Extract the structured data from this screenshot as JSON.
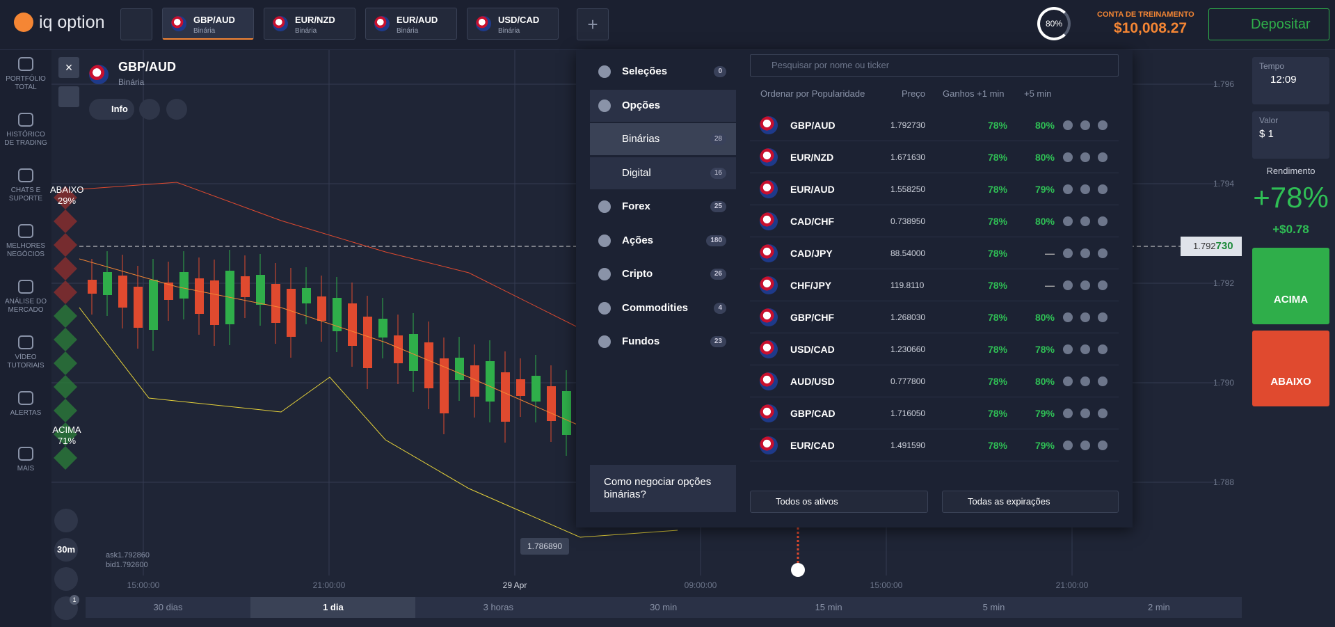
{
  "header": {
    "brand": "iq option",
    "tabs": [
      {
        "asset": "GBP/AUD",
        "type": "Binária"
      },
      {
        "asset": "EUR/NZD",
        "type": "Binária"
      },
      {
        "asset": "EUR/AUD",
        "type": "Binária"
      },
      {
        "asset": "USD/CAD",
        "type": "Binária"
      }
    ],
    "profit_level": "80%",
    "account_label": "CONTA DE TREINAMENTO",
    "balance": "$10,008.27",
    "deposit": "Depositar"
  },
  "sidebar": [
    "PORTFÓLIO TOTAL",
    "HISTÓRICO DE TRADING",
    "CHATS E SUPORTE",
    "MELHORES NEGÓCIOS",
    "ANÁLISE DO MERCADO",
    "VÍDEO TUTORIAIS",
    "ALERTAS",
    "MAIS"
  ],
  "chart": {
    "asset": "GBP/AUD",
    "type": "Binária",
    "info": "Info",
    "below_label": "ABAIXO",
    "below_pct": "29%",
    "above_label": "ACIMA",
    "above_pct": "71%",
    "price_ticks": [
      "1.796",
      "1.794",
      "1.792",
      "1.790",
      "1.788"
    ],
    "current_price_main": "1.792",
    "current_price_tail": "730",
    "marker_price": "1.786890",
    "ask": "ask1.792860",
    "bid": "bid1.792600",
    "time_ticks": [
      "15:00:00",
      "21:00:00",
      "29 Apr",
      "09:00:00",
      "15:00:00",
      "21:00:00"
    ],
    "period": "30m",
    "indicator_count": "1",
    "timeframes": [
      "30 dias",
      "1 dia",
      "3 horas",
      "30 min",
      "15 min",
      "5 min",
      "2 min"
    ]
  },
  "asset_menu": {
    "items": [
      {
        "label": "Seleções",
        "count": 0
      },
      {
        "label": "Opções"
      },
      {
        "label": "Binárias",
        "count": 28
      },
      {
        "label": "Digital",
        "count": 16
      },
      {
        "label": "Forex",
        "count": 25
      },
      {
        "label": "Ações",
        "count": 180
      },
      {
        "label": "Cripto",
        "count": 26
      },
      {
        "label": "Commodities",
        "count": 4
      },
      {
        "label": "Fundos",
        "count": 23
      }
    ],
    "video": "Como negociar opções binárias?"
  },
  "asset_list": {
    "search_placeholder": "Pesquisar por nome ou ticker",
    "headers": {
      "sort": "Ordenar por Popularidade",
      "price": "Preço",
      "profit_1min": "Ganhos +1 min",
      "profit_5min": "+5 min"
    },
    "rows": [
      {
        "name": "GBP/AUD",
        "price": "1.792730",
        "profit_1min": "78%",
        "profit_5min": "80%"
      },
      {
        "name": "EUR/NZD",
        "price": "1.671630",
        "profit_1min": "78%",
        "profit_5min": "80%"
      },
      {
        "name": "EUR/AUD",
        "price": "1.558250",
        "profit_1min": "78%",
        "profit_5min": "79%"
      },
      {
        "name": "CAD/CHF",
        "price": "0.738950",
        "profit_1min": "78%",
        "profit_5min": "80%"
      },
      {
        "name": "CAD/JPY",
        "price": "88.54000",
        "profit_1min": "78%",
        "profit_5min": "—"
      },
      {
        "name": "CHF/JPY",
        "price": "119.8110",
        "profit_1min": "78%",
        "profit_5min": "—"
      },
      {
        "name": "GBP/CHF",
        "price": "1.268030",
        "profit_1min": "78%",
        "profit_5min": "80%"
      },
      {
        "name": "USD/CAD",
        "price": "1.230660",
        "profit_1min": "78%",
        "profit_5min": "78%"
      },
      {
        "name": "AUD/USD",
        "price": "0.777800",
        "profit_1min": "78%",
        "profit_5min": "80%"
      },
      {
        "name": "GBP/CAD",
        "price": "1.716050",
        "profit_1min": "78%",
        "profit_5min": "79%"
      },
      {
        "name": "EUR/CAD",
        "price": "1.491590",
        "profit_1min": "78%",
        "profit_5min": "79%"
      }
    ],
    "filter_assets": "Todos os ativos",
    "filter_expiry": "Todas as expirações"
  },
  "trade_panel": {
    "time_label": "Tempo",
    "time": "12:09",
    "amount_label": "Valor",
    "amount": "$ 1",
    "return_label": "Rendimento",
    "return_pct": "+78%",
    "return_value": "+$0.78",
    "call": "ACIMA",
    "put": "ABAIXO"
  }
}
